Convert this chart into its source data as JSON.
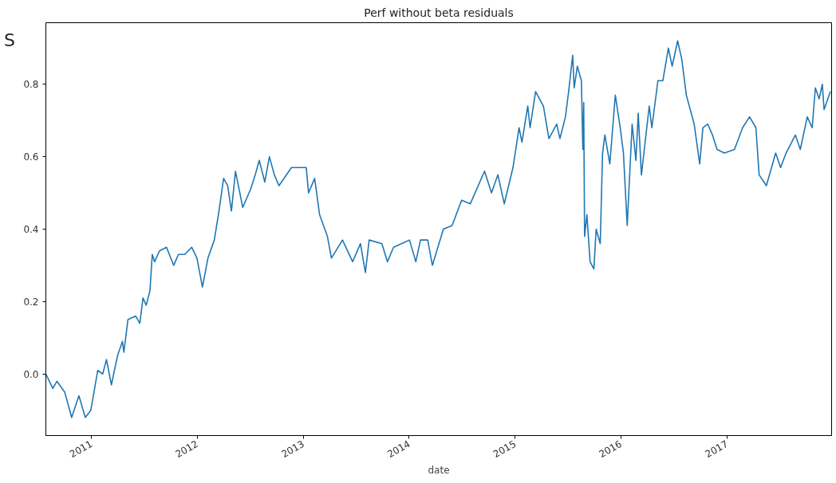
{
  "chart_data": {
    "type": "line",
    "title": "Perf without beta residuals",
    "xlabel": "date",
    "annotations": [
      "S"
    ],
    "xlim": [
      "2010-07-28",
      "2017-12-28"
    ],
    "ylim": [
      -0.17,
      0.97
    ],
    "xticks": [
      {
        "value": "2011-01-01",
        "label": "2011"
      },
      {
        "value": "2012-01-01",
        "label": "2012"
      },
      {
        "value": "2013-01-01",
        "label": "2013"
      },
      {
        "value": "2014-01-01",
        "label": "2014"
      },
      {
        "value": "2015-01-01",
        "label": "2015"
      },
      {
        "value": "2016-01-01",
        "label": "2016"
      },
      {
        "value": "2017-01-01",
        "label": "2017"
      }
    ],
    "yticks": [
      {
        "value": 0,
        "label": "0.0"
      },
      {
        "value": 0.2,
        "label": "0.2"
      },
      {
        "value": 0.4,
        "label": "0.4"
      },
      {
        "value": 0.6,
        "label": "0.6"
      },
      {
        "value": 0.8,
        "label": "0.8"
      }
    ],
    "grid": false,
    "marker": "none",
    "line_style": "solid",
    "series": [
      {
        "color": "#1f77b4",
        "x": [
          "2010-07-28",
          "2010-08-21",
          "2010-09-04",
          "2010-10-01",
          "2010-10-25",
          "2010-11-19",
          "2010-12-11",
          "2010-12-30",
          "2011-01-23",
          "2011-02-09",
          "2011-02-22",
          "2011-03-11",
          "2011-04-01",
          "2011-04-18",
          "2011-04-23",
          "2011-05-07",
          "2011-06-03",
          "2011-06-17",
          "2011-06-28",
          "2011-07-09",
          "2011-07-22",
          "2011-07-30",
          "2011-08-07",
          "2011-08-24",
          "2011-09-17",
          "2011-10-12",
          "2011-10-28",
          "2011-11-19",
          "2011-12-13",
          "2011-12-31",
          "2012-01-19",
          "2012-02-07",
          "2012-02-29",
          "2012-03-16",
          "2012-04-01",
          "2012-04-15",
          "2012-04-28",
          "2012-05-12",
          "2012-06-06",
          "2012-07-03",
          "2012-07-19",
          "2012-08-02",
          "2012-08-21",
          "2012-09-06",
          "2012-09-23",
          "2012-10-09",
          "2012-11-21",
          "2013-01-11",
          "2013-01-19",
          "2013-02-09",
          "2013-02-26",
          "2013-03-25",
          "2013-04-08",
          "2013-05-16",
          "2013-06-20",
          "2013-07-17",
          "2013-08-03",
          "2013-08-16",
          "2013-09-29",
          "2013-10-18",
          "2013-11-08",
          "2014-01-02",
          "2014-01-24",
          "2014-02-09",
          "2014-03-06",
          "2014-03-22",
          "2014-04-29",
          "2014-05-29",
          "2014-07-01",
          "2014-07-31",
          "2014-09-18",
          "2014-10-12",
          "2014-11-03",
          "2014-11-25",
          "2014-12-25",
          "2015-01-15",
          "2015-01-25",
          "2015-02-14",
          "2015-02-22",
          "2015-03-13",
          "2015-04-09",
          "2015-04-28",
          "2015-05-25",
          "2015-06-05",
          "2015-06-24",
          "2015-07-05",
          "2015-07-19",
          "2015-07-24",
          "2015-08-04",
          "2015-08-18",
          "2015-08-23",
          "2015-08-26",
          "2015-08-29",
          "2015-09-06",
          "2015-09-17",
          "2015-09-30",
          "2015-10-08",
          "2015-10-22",
          "2015-10-30",
          "2015-11-07",
          "2015-11-24",
          "2015-12-13",
          "2015-12-30",
          "2016-01-10",
          "2016-01-23",
          "2016-02-09",
          "2016-02-22",
          "2016-03-01",
          "2016-03-12",
          "2016-04-08",
          "2016-04-17",
          "2016-05-08",
          "2016-05-25",
          "2016-06-13",
          "2016-06-26",
          "2016-07-15",
          "2016-07-29",
          "2016-08-14",
          "2016-09-10",
          "2016-09-29",
          "2016-10-10",
          "2016-10-27",
          "2016-11-12",
          "2016-11-28",
          "2016-12-23",
          "2017-01-27",
          "2017-02-24",
          "2017-03-20",
          "2017-04-11",
          "2017-04-22",
          "2017-05-17",
          "2017-06-18",
          "2017-07-05",
          "2017-07-24",
          "2017-08-25",
          "2017-09-11",
          "2017-10-05",
          "2017-10-22",
          "2017-11-02",
          "2017-11-15",
          "2017-11-26",
          "2017-12-02",
          "2017-12-24"
        ],
        "values": [
          0.0,
          -0.04,
          -0.02,
          -0.05,
          -0.12,
          -0.06,
          -0.12,
          -0.1,
          0.01,
          0.0,
          0.04,
          -0.03,
          0.05,
          0.09,
          0.06,
          0.15,
          0.16,
          0.14,
          0.21,
          0.19,
          0.23,
          0.33,
          0.31,
          0.34,
          0.35,
          0.3,
          0.33,
          0.33,
          0.35,
          0.32,
          0.24,
          0.32,
          0.37,
          0.45,
          0.54,
          0.52,
          0.45,
          0.56,
          0.46,
          0.51,
          0.55,
          0.59,
          0.53,
          0.6,
          0.55,
          0.52,
          0.57,
          0.57,
          0.5,
          0.54,
          0.44,
          0.38,
          0.32,
          0.37,
          0.31,
          0.36,
          0.28,
          0.37,
          0.36,
          0.31,
          0.35,
          0.37,
          0.31,
          0.37,
          0.37,
          0.3,
          0.4,
          0.41,
          0.48,
          0.47,
          0.56,
          0.5,
          0.55,
          0.47,
          0.57,
          0.68,
          0.64,
          0.74,
          0.68,
          0.78,
          0.74,
          0.65,
          0.69,
          0.65,
          0.71,
          0.78,
          0.88,
          0.79,
          0.85,
          0.81,
          0.62,
          0.75,
          0.38,
          0.44,
          0.31,
          0.29,
          0.4,
          0.36,
          0.61,
          0.66,
          0.58,
          0.77,
          0.68,
          0.61,
          0.41,
          0.69,
          0.59,
          0.72,
          0.55,
          0.74,
          0.68,
          0.81,
          0.81,
          0.9,
          0.85,
          0.92,
          0.87,
          0.77,
          0.69,
          0.58,
          0.68,
          0.69,
          0.66,
          0.62,
          0.61,
          0.62,
          0.68,
          0.71,
          0.68,
          0.55,
          0.52,
          0.61,
          0.57,
          0.61,
          0.66,
          0.62,
          0.71,
          0.68,
          0.79,
          0.76,
          0.8,
          0.73,
          0.78
        ]
      }
    ]
  }
}
